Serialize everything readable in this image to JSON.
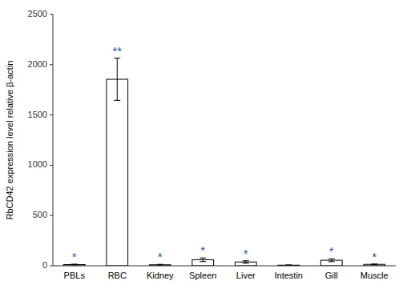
{
  "chart_data": {
    "type": "bar",
    "categories": [
      "PBLs",
      "RBC",
      "Kidney",
      "Spleen",
      "Liver",
      "Intestin",
      "Gill",
      "Muscle"
    ],
    "values": [
      12,
      1855,
      10,
      60,
      38,
      6,
      55,
      14
    ],
    "errors": [
      4,
      210,
      4,
      18,
      12,
      3,
      14,
      4
    ],
    "annotations": [
      "*",
      "**",
      "*",
      "*",
      "*",
      null,
      "*",
      "*"
    ],
    "ylabel": "RbCD42 expression level relative β-actin",
    "ylim": [
      0,
      2500
    ],
    "yticks": [
      0,
      500,
      1000,
      1500,
      2000,
      2500
    ],
    "color": "#ffffff",
    "grid": false
  }
}
